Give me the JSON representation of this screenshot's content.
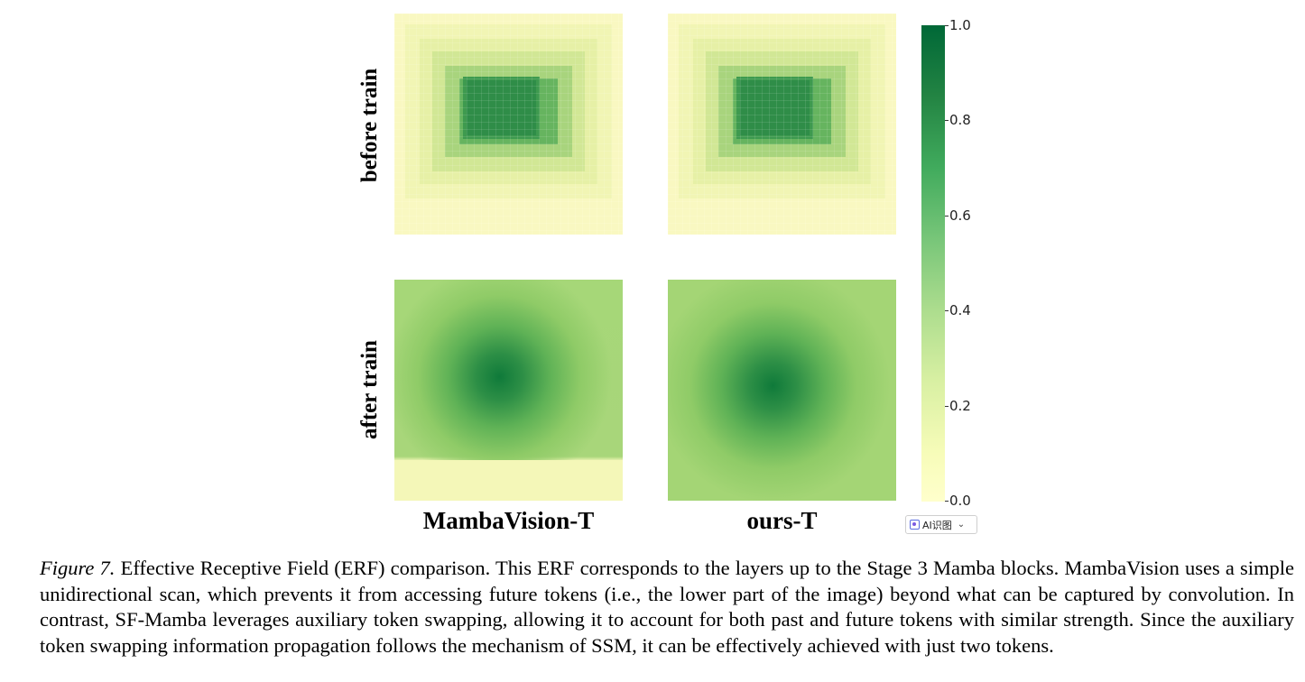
{
  "figure": {
    "row_labels": [
      "before train",
      "after train"
    ],
    "column_labels": [
      "MambaVision-T",
      "ours-T"
    ],
    "colorbar": {
      "ticks": [
        "0.0",
        "0.2",
        "0.4",
        "0.6",
        "0.8",
        "1.0"
      ],
      "colormap": [
        "#ffffcc",
        "#d9f0a3",
        "#addd8e",
        "#78c679",
        "#41ab5d",
        "#238443",
        "#006837"
      ]
    }
  },
  "widget": {
    "label": "AI识图",
    "icon": "ai-scan-icon",
    "chevron": "⌄"
  },
  "caption": {
    "label": "Figure 7.",
    "text": " Effective Receptive Field (ERF) comparison. This ERF corresponds to the layers up to the Stage 3 Mamba blocks. MambaVision uses a simple unidirectional scan, which prevents it from accessing future tokens (i.e., the lower part of the image) beyond what can be captured by convolution. In contrast, SF-Mamba leverages auxiliary token swapping, allowing it to account for both past and future tokens with similar strength. Since the auxiliary token swapping information propagation follows the mechanism of SSM, it can be effectively achieved with just two tokens."
  }
}
